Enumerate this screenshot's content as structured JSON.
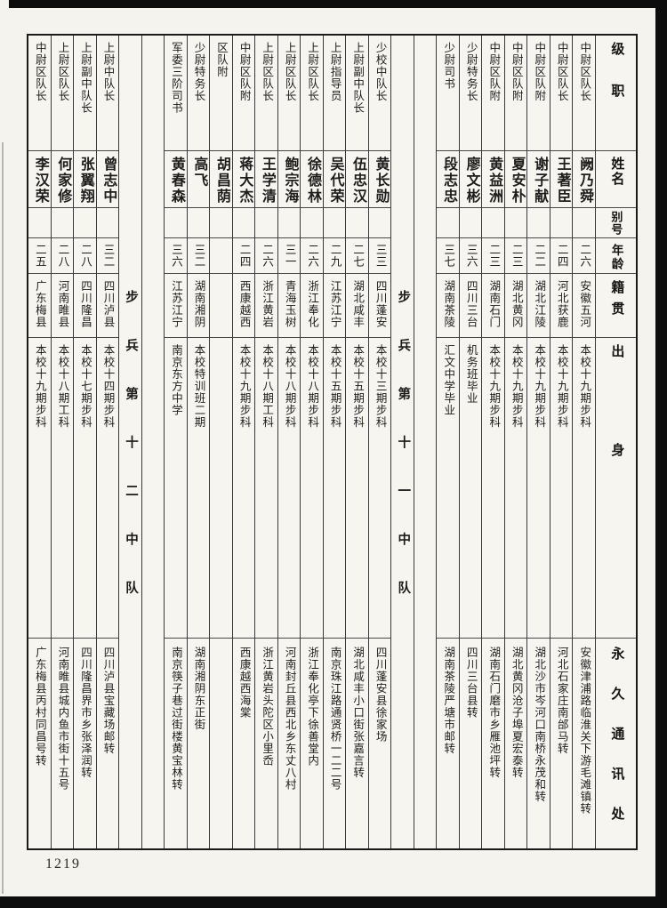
{
  "page": {
    "number": "1219"
  },
  "colors": {
    "paper": "#f4f3ee",
    "ink": "#1e1d1c",
    "grid": "#39383a",
    "scan_edge": "#0d0d0d"
  },
  "headers": {
    "rank": "级职",
    "name": "姓名",
    "alias": "别号",
    "age": "年龄",
    "native": "籍贯",
    "origin": "出身",
    "address": "永久通讯处"
  },
  "table": {
    "columns": [
      {
        "type": "person",
        "rank": "中尉区队长",
        "name": "阙乃舜",
        "alias": "",
        "age": "二六",
        "native": "安徽五河",
        "origin": "本校十九期步科",
        "address": "安徽津浦路临淮关下游毛滩镇转"
      },
      {
        "type": "person",
        "rank": "中尉区队长",
        "name": "王著臣",
        "alias": "",
        "age": "二四",
        "native": "河北获鹿",
        "origin": "本校十九期步科",
        "address": "河北石家庄南邰马转"
      },
      {
        "type": "person",
        "rank": "中尉区队附",
        "name": "谢子献",
        "alias": "",
        "age": "二二",
        "native": "湖北江陵",
        "origin": "本校十九期步科",
        "address": "湖北沙市岑河口南桥永茂和转"
      },
      {
        "type": "person",
        "rank": "中尉区队附",
        "name": "夏安朴",
        "alias": "",
        "age": "二三",
        "native": "湖北黄冈",
        "origin": "本校十九期步科",
        "address": "湖北黄冈沧子埠夏宏泰转"
      },
      {
        "type": "person",
        "rank": "中尉区队附",
        "name": "黄益洲",
        "alias": "",
        "age": "二三",
        "native": "湖南石门",
        "origin": "本校十九期步科",
        "address": "湖南石门磨市乡雁池坪转"
      },
      {
        "type": "person",
        "rank": "少尉特务长",
        "name": "廖文彬",
        "alias": "",
        "age": "三六",
        "native": "四川三台",
        "origin": "机务班毕业",
        "address": "四川三台县转"
      },
      {
        "type": "person",
        "rank": "少尉司书",
        "name": "段志忠",
        "alias": "",
        "age": "三七",
        "native": "湖南茶陵",
        "origin": "汇文中学毕业",
        "address": "湖南茶陵严塘市邮转"
      },
      {
        "type": "spacer"
      },
      {
        "type": "group",
        "label": "步兵第十一中队"
      },
      {
        "type": "person",
        "rank": "少校中队长",
        "name": "黄长勋",
        "alias": "",
        "age": "三三",
        "native": "四川蓬安",
        "origin": "本校十三期步科",
        "address": "四川蓬安县徐家场"
      },
      {
        "type": "person",
        "rank": "上尉副中队长",
        "name": "伍忠汉",
        "alias": "",
        "age": "二七",
        "native": "湖北咸丰",
        "origin": "本校十五期步科",
        "address": "湖北咸丰小口街张嘉言转"
      },
      {
        "type": "person",
        "rank": "上尉指导员",
        "name": "吴代荣",
        "alias": "",
        "age": "二九",
        "native": "江苏江宁",
        "origin": "本校十五期步科",
        "address": "南京珠江路通贤桥一二二号"
      },
      {
        "type": "person",
        "rank": "上尉区队长",
        "name": "徐德林",
        "alias": "",
        "age": "二六",
        "native": "浙江奉化",
        "origin": "本校十八期步科",
        "address": "浙江奉化亭下徐善堂内"
      },
      {
        "type": "person",
        "rank": "上尉区队长",
        "name": "鲍宗海",
        "alias": "",
        "age": "三一",
        "native": "青海玉树",
        "origin": "本校十八期步科",
        "address": "河南封丘县西北乡东丈八村"
      },
      {
        "type": "person",
        "rank": "上尉区队长",
        "name": "王学清",
        "alias": "",
        "age": "二六",
        "native": "浙江黄岩",
        "origin": "本校十八期工科",
        "address": "浙江黄岩头陀区小里岙"
      },
      {
        "type": "person",
        "rank": "中尉区队附",
        "name": "蒋大杰",
        "alias": "",
        "age": "二四",
        "native": "西康越西",
        "origin": "本校十九期步科",
        "address": "西康越西海棠"
      },
      {
        "type": "person",
        "rank": "区队附",
        "name": "胡昌荫",
        "alias": "",
        "age": "",
        "native": "",
        "origin": "",
        "address": ""
      },
      {
        "type": "person",
        "rank": "少尉特务长",
        "name": "高飞",
        "alias": "",
        "age": "三二",
        "native": "湖南湘阴",
        "origin": "本校特训班二期",
        "address": "湖南湘阴东正街"
      },
      {
        "type": "person",
        "rank": "军委三阶司书",
        "name": "黄春森",
        "alias": "",
        "age": "三六",
        "native": "江苏江宁",
        "origin": "南京东方中学",
        "address": "南京筷子巷过街楼黄宝林转"
      },
      {
        "type": "spacer"
      },
      {
        "type": "group",
        "label": "步兵第十二中队"
      },
      {
        "type": "person",
        "rank": "上尉中队长",
        "name": "曾志中",
        "alias": "",
        "age": "三二",
        "native": "四川泸县",
        "origin": "本校十四期步科",
        "address": "四川泸县宝藏场邮转"
      },
      {
        "type": "person",
        "rank": "上尉副中队长",
        "name": "张翼翔",
        "alias": "",
        "age": "二八",
        "native": "四川隆昌",
        "origin": "本校十七期步科",
        "address": "四川隆昌界市乡张泽润转"
      },
      {
        "type": "person",
        "rank": "上尉区队长",
        "name": "何家修",
        "alias": "",
        "age": "二八",
        "native": "河南睢县",
        "origin": "本校十八期工科",
        "address": "河南睢县城内鱼市街十五号"
      },
      {
        "type": "person",
        "rank": "中尉区队长",
        "name": "李汉荣",
        "alias": "",
        "age": "二五",
        "native": "广东梅县",
        "origin": "本校十九期步科",
        "address": "广东梅县丙村同昌号转"
      }
    ]
  }
}
